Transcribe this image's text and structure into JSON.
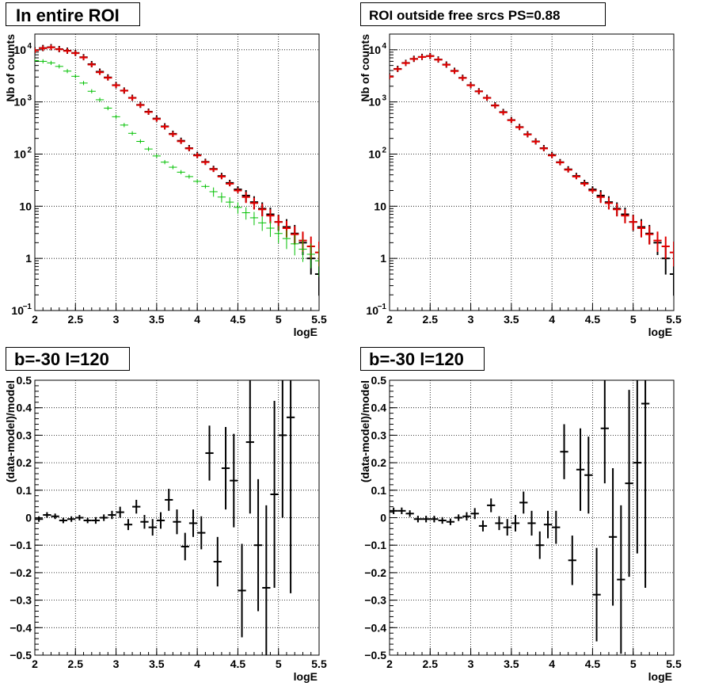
{
  "chart_data": [
    {
      "type": "scatter",
      "title": "In entire ROI",
      "xlabel": "logE",
      "ylabel": "Nb of counts",
      "xlim": [
        2,
        5.5
      ],
      "ylim": [
        0.1,
        20000
      ],
      "yscale": "log",
      "grid": true,
      "x_ticks": [
        "2",
        "2.5",
        "3",
        "3.5",
        "4",
        "4.5",
        "5",
        "5.5"
      ],
      "y_ticks": [
        {
          "value": 0.1,
          "label": "10",
          "sup": "−1"
        },
        {
          "value": 1,
          "label": "1",
          "sup": ""
        },
        {
          "value": 10,
          "label": "10",
          "sup": ""
        },
        {
          "value": 100,
          "label": "10",
          "sup": "2"
        },
        {
          "value": 1000,
          "label": "10",
          "sup": "3"
        },
        {
          "value": 10000,
          "label": "10",
          "sup": "4"
        }
      ],
      "series": [
        {
          "style": "data",
          "color": "#000000",
          "x": [
            2.0,
            2.1,
            2.2,
            2.3,
            2.4,
            2.5,
            2.6,
            2.7,
            2.8,
            2.9,
            3.0,
            3.1,
            3.2,
            3.3,
            3.4,
            3.5,
            3.6,
            3.7,
            3.8,
            3.9,
            4.0,
            4.1,
            4.2,
            4.3,
            4.4,
            4.5,
            4.6,
            4.7,
            4.8,
            4.9,
            5.0,
            5.1,
            5.2,
            5.3,
            5.4,
            5.5
          ],
          "y": [
            9800,
            10800,
            11200,
            10300,
            9600,
            8700,
            7200,
            5300,
            3800,
            2950,
            2100,
            1650,
            1200,
            880,
            650,
            480,
            340,
            245,
            180,
            130,
            96,
            71,
            52,
            38,
            28,
            21,
            16,
            12,
            9,
            7,
            5,
            4,
            3,
            2,
            1,
            0.5
          ],
          "err": [
            0.06,
            0.06,
            0.06,
            0.06,
            0.06,
            0.06,
            0.06,
            0.06,
            0.06,
            0.06,
            0.06,
            0.06,
            0.06,
            0.06,
            0.06,
            0.06,
            0.06,
            0.06,
            0.06,
            0.06,
            0.06,
            0.06,
            0.06,
            0.06,
            0.06,
            0.06,
            0.06,
            0.06,
            0.06,
            0.06,
            0.06,
            0.06,
            0.06,
            0.06,
            0.06,
            0.06
          ]
        },
        {
          "style": "model",
          "color": "#e00000",
          "x": [
            2.0,
            2.1,
            2.2,
            2.3,
            2.4,
            2.5,
            2.6,
            2.7,
            2.8,
            2.9,
            3.0,
            3.1,
            3.2,
            3.3,
            3.4,
            3.5,
            3.6,
            3.7,
            3.8,
            3.9,
            4.0,
            4.1,
            4.2,
            4.3,
            4.4,
            4.5,
            4.6,
            4.7,
            4.8,
            4.9,
            5.0,
            5.1,
            5.2,
            5.3,
            5.4,
            5.5
          ],
          "y": [
            9700,
            10700,
            11100,
            10200,
            9500,
            8600,
            7100,
            5200,
            3700,
            2900,
            2080,
            1640,
            1190,
            870,
            640,
            470,
            335,
            240,
            176,
            128,
            94,
            70,
            51,
            37,
            27,
            20,
            15,
            11.5,
            8.7,
            6.6,
            5.0,
            3.8,
            2.9,
            2.2,
            1.7,
            1.3
          ],
          "err": [
            0.05,
            0.05,
            0.05,
            0.05,
            0.05,
            0.05,
            0.05,
            0.05,
            0.05,
            0.05,
            0.05,
            0.05,
            0.05,
            0.05,
            0.05,
            0.05,
            0.05,
            0.05,
            0.05,
            0.05,
            0.05,
            0.05,
            0.05,
            0.05,
            0.05,
            0.05,
            0.05,
            0.05,
            0.05,
            0.05,
            0.05,
            0.05,
            0.05,
            0.05,
            0.05,
            0.05
          ]
        },
        {
          "style": "component",
          "color": "#00c000",
          "x": [
            2.0,
            2.1,
            2.2,
            2.3,
            2.4,
            2.5,
            2.6,
            2.7,
            2.8,
            2.9,
            3.0,
            3.1,
            3.2,
            3.3,
            3.4,
            3.5,
            3.6,
            3.7,
            3.8,
            3.9,
            4.0,
            4.1,
            4.2,
            4.3,
            4.4,
            4.5,
            4.6,
            4.7,
            4.8,
            4.9,
            5.0,
            5.1,
            5.2,
            5.3,
            5.4,
            5.5
          ],
          "y": [
            6200,
            6000,
            5600,
            4800,
            3900,
            3100,
            2300,
            1600,
            1100,
            760,
            520,
            360,
            250,
            175,
            125,
            92,
            70,
            56,
            45,
            37,
            30,
            24,
            19,
            15,
            12,
            9.5,
            7.5,
            6.0,
            4.8,
            3.8,
            3.0,
            2.4,
            1.9,
            1.5,
            1.2,
            0.9
          ],
          "err": [
            0.04,
            0.04,
            0.04,
            0.04,
            0.04,
            0.04,
            0.04,
            0.04,
            0.04,
            0.04,
            0.04,
            0.04,
            0.04,
            0.04,
            0.04,
            0.04,
            0.04,
            0.04,
            0.04,
            0.04,
            0.04,
            0.04,
            0.04,
            0.04,
            0.04,
            0.04,
            0.04,
            0.04,
            0.04,
            0.04,
            0.04,
            0.04,
            0.04,
            0.04,
            0.04,
            0.04
          ]
        }
      ]
    },
    {
      "type": "scatter",
      "title": "ROI outside free srcs PS=0.88",
      "xlabel": "logE",
      "ylabel": "Nb of counts",
      "xlim": [
        2,
        5.5
      ],
      "ylim": [
        0.1,
        20000
      ],
      "yscale": "log",
      "grid": true,
      "x_ticks": [
        "2",
        "2.5",
        "3",
        "3.5",
        "4",
        "4.5",
        "5",
        "5.5"
      ],
      "y_ticks": [
        {
          "value": 0.1,
          "label": "10",
          "sup": "−1"
        },
        {
          "value": 1,
          "label": "1",
          "sup": ""
        },
        {
          "value": 10,
          "label": "10",
          "sup": ""
        },
        {
          "value": 100,
          "label": "10",
          "sup": "2"
        },
        {
          "value": 1000,
          "label": "10",
          "sup": "3"
        },
        {
          "value": 10000,
          "label": "10",
          "sup": "4"
        }
      ],
      "series": [
        {
          "style": "data",
          "color": "#000000",
          "x": [
            2.0,
            2.1,
            2.2,
            2.3,
            2.4,
            2.5,
            2.6,
            2.7,
            2.8,
            2.9,
            3.0,
            3.1,
            3.2,
            3.3,
            3.4,
            3.5,
            3.6,
            3.7,
            3.8,
            3.9,
            4.0,
            4.1,
            4.2,
            4.3,
            4.4,
            4.5,
            4.6,
            4.7,
            4.8,
            4.9,
            5.0,
            5.1,
            5.2,
            5.3,
            5.4,
            5.5
          ],
          "y": [
            3100,
            4300,
            5600,
            6700,
            7300,
            7600,
            6500,
            5200,
            3950,
            2900,
            2100,
            1600,
            1200,
            860,
            640,
            450,
            330,
            240,
            175,
            130,
            96,
            70,
            51,
            38,
            28,
            21,
            16,
            12,
            9,
            7,
            5,
            4,
            3,
            2,
            1,
            0.5
          ],
          "err": [
            0.06,
            0.06,
            0.06,
            0.06,
            0.06,
            0.06,
            0.06,
            0.06,
            0.06,
            0.06,
            0.06,
            0.06,
            0.06,
            0.06,
            0.06,
            0.06,
            0.06,
            0.06,
            0.06,
            0.06,
            0.06,
            0.06,
            0.06,
            0.06,
            0.06,
            0.06,
            0.06,
            0.06,
            0.06,
            0.06,
            0.06,
            0.06,
            0.06,
            0.06,
            0.06,
            0.06
          ]
        },
        {
          "style": "model",
          "color": "#e00000",
          "x": [
            2.0,
            2.1,
            2.2,
            2.3,
            2.4,
            2.5,
            2.6,
            2.7,
            2.8,
            2.9,
            3.0,
            3.1,
            3.2,
            3.3,
            3.4,
            3.5,
            3.6,
            3.7,
            3.8,
            3.9,
            4.0,
            4.1,
            4.2,
            4.3,
            4.4,
            4.5,
            4.6,
            4.7,
            4.8,
            4.9,
            5.0,
            5.1,
            5.2,
            5.3,
            5.4,
            5.5
          ],
          "y": [
            3050,
            4250,
            5550,
            6650,
            7250,
            7550,
            6450,
            5150,
            3900,
            2870,
            2080,
            1590,
            1190,
            850,
            630,
            445,
            326,
            237,
            173,
            128,
            94,
            69,
            50,
            37,
            27,
            20,
            15,
            11.5,
            8.7,
            6.6,
            5.0,
            3.8,
            2.9,
            2.2,
            1.7,
            1.3
          ],
          "err": [
            0.05,
            0.05,
            0.05,
            0.05,
            0.05,
            0.05,
            0.05,
            0.05,
            0.05,
            0.05,
            0.05,
            0.05,
            0.05,
            0.05,
            0.05,
            0.05,
            0.05,
            0.05,
            0.05,
            0.05,
            0.05,
            0.05,
            0.05,
            0.05,
            0.05,
            0.05,
            0.05,
            0.05,
            0.05,
            0.05,
            0.05,
            0.05,
            0.05,
            0.05,
            0.05,
            0.05
          ]
        }
      ]
    },
    {
      "type": "scatter",
      "title": "b=-30 l=120",
      "xlabel": "logE",
      "ylabel": "(data-model)/model",
      "xlim": [
        2,
        5.5
      ],
      "ylim": [
        -0.5,
        0.5
      ],
      "grid": true,
      "x_ticks": [
        "2",
        "2.5",
        "3",
        "3.5",
        "4",
        "4.5",
        "5",
        "5.5"
      ],
      "y_ticks": [
        "−0.5",
        "−0.4",
        "−0.3",
        "−0.2",
        "−0.1",
        "0",
        "0.1",
        "0.2",
        "0.3",
        "0.4",
        "0.5"
      ],
      "series": [
        {
          "style": "residual",
          "color": "#000000",
          "x": [
            2.05,
            2.15,
            2.25,
            2.35,
            2.45,
            2.55,
            2.65,
            2.75,
            2.85,
            2.95,
            3.05,
            3.15,
            3.25,
            3.35,
            3.45,
            3.55,
            3.65,
            3.75,
            3.85,
            3.95,
            4.05,
            4.15,
            4.25,
            4.35,
            4.45,
            4.55,
            4.65,
            4.75,
            4.85,
            4.95,
            5.05,
            5.15,
            5.25,
            5.35
          ],
          "y": [
            -0.005,
            0.01,
            0.005,
            -0.01,
            -0.005,
            0.0,
            -0.01,
            -0.01,
            0.0,
            0.01,
            0.02,
            -0.025,
            0.04,
            -0.015,
            -0.035,
            -0.01,
            0.065,
            -0.015,
            -0.105,
            -0.02,
            -0.055,
            0.235,
            -0.16,
            0.18,
            0.135,
            -0.265,
            0.275,
            -0.1,
            -0.255,
            0.085,
            0.3,
            0.365,
            0,
            0
          ],
          "err": [
            0.01,
            0.01,
            0.01,
            0.01,
            0.01,
            0.01,
            0.01,
            0.012,
            0.012,
            0.015,
            0.02,
            0.02,
            0.025,
            0.025,
            0.03,
            0.03,
            0.04,
            0.045,
            0.05,
            0.05,
            0.06,
            0.1,
            0.09,
            0.15,
            0.17,
            0.17,
            0.26,
            0.24,
            0.3,
            0.34,
            0.3,
            0.64,
            0,
            0
          ]
        }
      ]
    },
    {
      "type": "scatter",
      "title": "b=-30 l=120",
      "xlabel": "logE",
      "ylabel": "(data-model)/model",
      "xlim": [
        2,
        5.5
      ],
      "ylim": [
        -0.5,
        0.5
      ],
      "grid": true,
      "x_ticks": [
        "2",
        "2.5",
        "3",
        "3.5",
        "4",
        "4.5",
        "5",
        "5.5"
      ],
      "y_ticks": [
        "−0.5",
        "−0.4",
        "−0.3",
        "−0.2",
        "−0.1",
        "0",
        "0.1",
        "0.2",
        "0.3",
        "0.4",
        "0.5"
      ],
      "series": [
        {
          "style": "residual",
          "color": "#000000",
          "x": [
            2.05,
            2.15,
            2.25,
            2.35,
            2.45,
            2.55,
            2.65,
            2.75,
            2.85,
            2.95,
            3.05,
            3.15,
            3.25,
            3.35,
            3.45,
            3.55,
            3.65,
            3.75,
            3.85,
            3.95,
            4.05,
            4.15,
            4.25,
            4.35,
            4.45,
            4.55,
            4.65,
            4.75,
            4.85,
            4.95,
            5.05,
            5.15,
            5.25
          ],
          "y": [
            0.025,
            0.025,
            0.015,
            -0.005,
            -0.005,
            -0.005,
            -0.01,
            -0.015,
            0.0,
            0.005,
            0.015,
            -0.03,
            0.045,
            -0.02,
            -0.035,
            -0.02,
            0.055,
            -0.02,
            -0.1,
            -0.025,
            -0.035,
            0.24,
            -0.155,
            0.175,
            0.155,
            -0.28,
            0.325,
            -0.07,
            -0.225,
            0.125,
            0.2,
            0.415,
            0
          ],
          "err": [
            0.012,
            0.012,
            0.012,
            0.012,
            0.012,
            0.012,
            0.012,
            0.012,
            0.012,
            0.015,
            0.02,
            0.02,
            0.025,
            0.025,
            0.03,
            0.03,
            0.04,
            0.045,
            0.05,
            0.05,
            0.06,
            0.1,
            0.09,
            0.15,
            0.14,
            0.17,
            0.2,
            0.25,
            0.27,
            0.34,
            0.33,
            0.67,
            0
          ]
        }
      ]
    }
  ]
}
